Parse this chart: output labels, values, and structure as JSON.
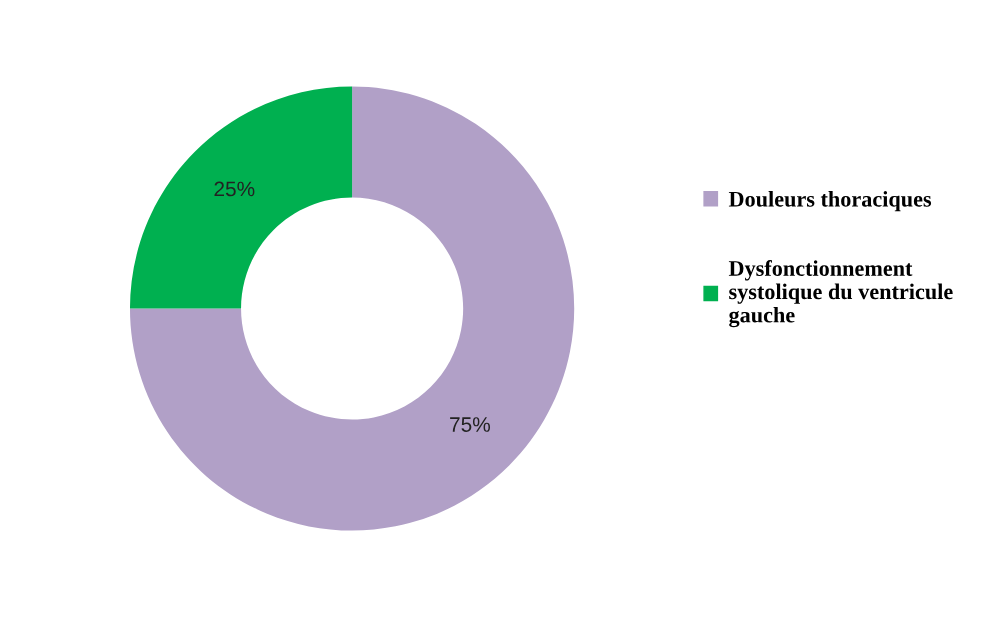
{
  "chart_data": {
    "type": "donut",
    "categories": [
      "Douleurs thoraciques",
      "Dysfonctionnement systolique du ventricule gauche"
    ],
    "values": [
      75,
      25
    ],
    "colors": [
      "#b1a0c7",
      "#00b050"
    ],
    "value_labels": [
      "75%",
      "25%"
    ],
    "legend": "right"
  }
}
